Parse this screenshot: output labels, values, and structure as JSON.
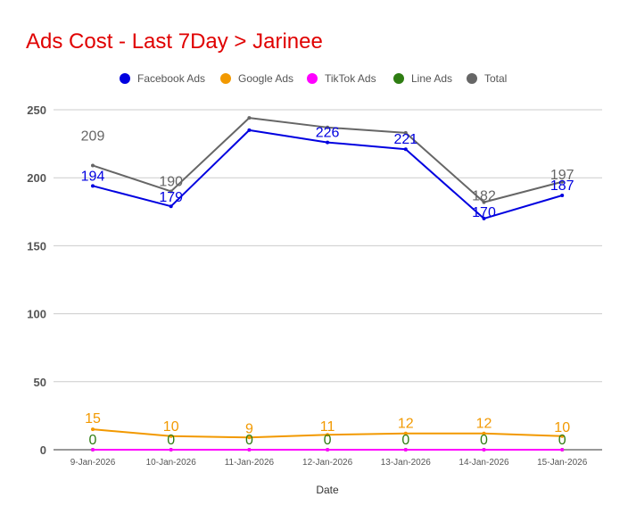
{
  "chart_data": {
    "type": "line",
    "title": "Ads Cost - Last 7Day > Jarinee",
    "title_color": "#e00000",
    "xlabel": "Date",
    "ylabel": "",
    "ylim": [
      0,
      250
    ],
    "yticks": [
      "0",
      "50",
      "100",
      "150",
      "200",
      "250"
    ],
    "grid": true,
    "legend_position": "top",
    "categories": [
      "9-Jan-2026",
      "10-Jan-2026",
      "11-Jan-2026",
      "12-Jan-2026",
      "13-Jan-2026",
      "14-Jan-2026",
      "15-Jan-2026"
    ],
    "series": [
      {
        "name": "Facebook Ads",
        "color": "#0000e0",
        "values": [
          194,
          179,
          235,
          226,
          221,
          170,
          187
        ],
        "labels": [
          "194",
          "179",
          "",
          "226",
          "221",
          "170",
          "187"
        ]
      },
      {
        "name": "Google Ads",
        "color": "#f29900",
        "values": [
          15,
          10,
          9,
          11,
          12,
          12,
          10
        ],
        "labels": [
          "15",
          "10",
          "9",
          "11",
          "12",
          "12",
          "10"
        ]
      },
      {
        "name": "TikTok Ads",
        "color": "#ff00ff",
        "values": [
          0,
          0,
          0,
          0,
          0,
          0,
          0
        ],
        "labels": [
          "",
          "",
          "",
          "",
          "",
          "",
          ""
        ]
      },
      {
        "name": "Line Ads",
        "color": "#2e7d12",
        "values": [
          0,
          0,
          0,
          0,
          0,
          0,
          0
        ],
        "labels": [
          "0",
          "0",
          "0",
          "0",
          "0",
          "0",
          "0"
        ]
      },
      {
        "name": "Total",
        "color": "#666666",
        "values": [
          209,
          190,
          244,
          237,
          233,
          182,
          197
        ],
        "labels": [
          "209",
          "190",
          "",
          "",
          "",
          "182",
          "197"
        ]
      }
    ]
  }
}
